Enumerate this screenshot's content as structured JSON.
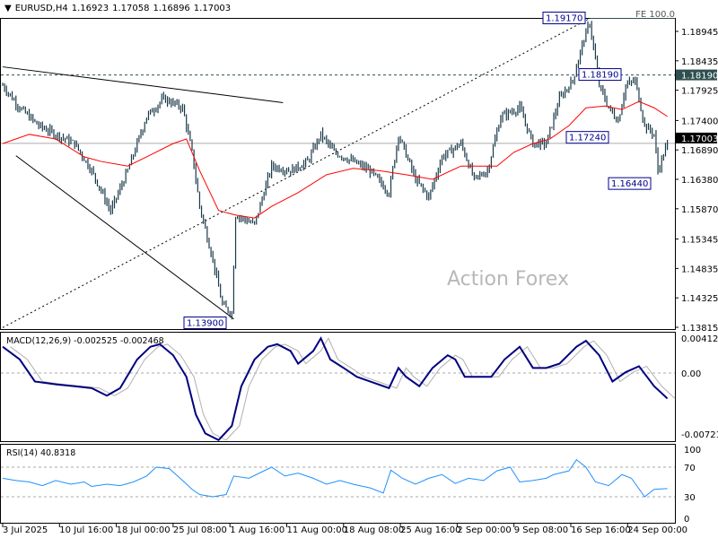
{
  "header": {
    "symbol": "EURUSD,H4",
    "open": "1.16923",
    "high": "1.17058",
    "low": "1.16896",
    "close": "1.17003"
  },
  "watermark": "Action Forex",
  "fe_label": "FE 100.0",
  "colors": {
    "bars": "#1a3a4a",
    "ma": "#ff0000",
    "macd": "#000080",
    "signal": "#b0b0b0",
    "rsi": "#1e90ff",
    "label_border": "#00008b"
  },
  "chart_data": [
    {
      "type": "ohlc",
      "title": "EURUSD,H4",
      "x_unit": "bar index (H4)",
      "x_ticks": [
        {
          "bar": 0,
          "label": "3 Jul 2025"
        },
        {
          "bar": 30,
          "label": "10 Jul 16:00"
        },
        {
          "bar": 60,
          "label": "18 Jul 00:00"
        },
        {
          "bar": 90,
          "label": "25 Jul 08:00"
        },
        {
          "bar": 120,
          "label": "1 Aug 16:00"
        },
        {
          "bar": 150,
          "label": "11 Aug 00:00"
        },
        {
          "bar": 180,
          "label": "18 Aug 08:00"
        },
        {
          "bar": 210,
          "label": "25 Aug 16:00"
        },
        {
          "bar": 240,
          "label": "2 Sep 00:00"
        },
        {
          "bar": 270,
          "label": "9 Sep 08:00"
        },
        {
          "bar": 300,
          "label": "16 Sep 16:00"
        },
        {
          "bar": 330,
          "label": "24 Sep 00:00"
        }
      ],
      "y_ticks": [
        "1.18945",
        "1.18435",
        "1.17925",
        "1.17400",
        "1.16890",
        "1.16380",
        "1.15870",
        "1.15345",
        "1.14835",
        "1.14325",
        "1.13815"
      ],
      "ylim": [
        1.13815,
        1.18945
      ],
      "close_path": [
        [
          0,
          1.1801
        ],
        [
          9,
          1.1762
        ],
        [
          19,
          1.1731
        ],
        [
          28,
          1.1716
        ],
        [
          38,
          1.17
        ],
        [
          47,
          1.1653
        ],
        [
          57,
          1.1583
        ],
        [
          66,
          1.1653
        ],
        [
          76,
          1.1747
        ],
        [
          85,
          1.1778
        ],
        [
          95,
          1.1762
        ],
        [
          100,
          1.1685
        ],
        [
          104,
          1.1591
        ],
        [
          111,
          1.1498
        ],
        [
          116,
          1.142
        ],
        [
          121,
          1.1405
        ],
        [
          123,
          1.1576
        ],
        [
          133,
          1.156
        ],
        [
          142,
          1.1661
        ],
        [
          152,
          1.1653
        ],
        [
          161,
          1.1669
        ],
        [
          168,
          1.1716
        ],
        [
          175,
          1.1685
        ],
        [
          185,
          1.1669
        ],
        [
          194,
          1.1653
        ],
        [
          204,
          1.1615
        ],
        [
          209,
          1.1716
        ],
        [
          218,
          1.1638
        ],
        [
          225,
          1.1607
        ],
        [
          232,
          1.1677
        ],
        [
          242,
          1.17
        ],
        [
          249,
          1.1638
        ],
        [
          256,
          1.1653
        ],
        [
          263,
          1.1747
        ],
        [
          273,
          1.1762
        ],
        [
          280,
          1.17
        ],
        [
          287,
          1.17
        ],
        [
          294,
          1.1778
        ],
        [
          301,
          1.1809
        ],
        [
          306,
          1.1871
        ],
        [
          310,
          1.191
        ],
        [
          315,
          1.1801
        ],
        [
          320,
          1.1762
        ],
        [
          325,
          1.1739
        ],
        [
          329,
          1.1801
        ],
        [
          334,
          1.1809
        ],
        [
          339,
          1.1731
        ],
        [
          344,
          1.1716
        ],
        [
          346,
          1.1653
        ],
        [
          351,
          1.17
        ]
      ],
      "moving_average": [
        [
          0,
          1.17
        ],
        [
          14,
          1.1716
        ],
        [
          28,
          1.1708
        ],
        [
          43,
          1.1677
        ],
        [
          52,
          1.1669
        ],
        [
          66,
          1.1661
        ],
        [
          76,
          1.1677
        ],
        [
          90,
          1.17
        ],
        [
          97,
          1.1708
        ],
        [
          104,
          1.1653
        ],
        [
          114,
          1.1584
        ],
        [
          123,
          1.1576
        ],
        [
          133,
          1.1571
        ],
        [
          142,
          1.1591
        ],
        [
          156,
          1.1615
        ],
        [
          171,
          1.1646
        ],
        [
          185,
          1.1657
        ],
        [
          199,
          1.1653
        ],
        [
          213,
          1.1646
        ],
        [
          227,
          1.1638
        ],
        [
          242,
          1.1661
        ],
        [
          251,
          1.1661
        ],
        [
          261,
          1.1661
        ],
        [
          270,
          1.1685
        ],
        [
          280,
          1.17
        ],
        [
          289,
          1.1708
        ],
        [
          299,
          1.1731
        ],
        [
          308,
          1.1762
        ],
        [
          318,
          1.1765
        ],
        [
          327,
          1.1759
        ],
        [
          336,
          1.1773
        ],
        [
          344,
          1.1762
        ],
        [
          351,
          1.1747
        ]
      ],
      "current_price": "1.17003",
      "levels": [
        {
          "label": "1.19170",
          "price": 1.1917,
          "style": "solid",
          "bar": 310
        },
        {
          "label": "1.18190",
          "price": 1.1819,
          "style": "dashed",
          "bar": 320
        },
        {
          "label": "1.17240",
          "price": 1.1724,
          "style": "none",
          "bar": 325
        },
        {
          "label": "1.16440",
          "price": 1.1644,
          "style": "none",
          "bar": 346
        },
        {
          "label": "1.13900",
          "price": 1.139,
          "style": "none",
          "bar": 121
        }
      ],
      "trendlines": [
        {
          "from": [
            0,
            1.1833
          ],
          "to": [
            148,
            1.1771
          ],
          "style": "solid"
        },
        {
          "from": [
            7,
            1.1679
          ],
          "to": [
            122,
            1.1396
          ],
          "style": "solid"
        },
        {
          "from": [
            0,
            1.1381
          ],
          "to": [
            310,
            1.1917
          ],
          "style": "dotted"
        }
      ]
    },
    {
      "type": "line",
      "title": "MACD(12,26,9) -0.002525 -0.002468",
      "y_ticks": [
        "0.004128",
        "0.00",
        "-0.007216"
      ],
      "ylim": [
        -0.007216,
        0.004128
      ],
      "macd": [
        [
          0,
          0.0031
        ],
        [
          9,
          0.0016
        ],
        [
          17,
          -0.0009
        ],
        [
          28,
          -0.0012
        ],
        [
          38,
          -0.0014
        ],
        [
          47,
          -0.0016
        ],
        [
          55,
          -0.0024
        ],
        [
          62,
          -0.0016
        ],
        [
          71,
          0.0016
        ],
        [
          78,
          0.0031
        ],
        [
          83,
          0.0034
        ],
        [
          90,
          0.0021
        ],
        [
          97,
          -0.0004
        ],
        [
          102,
          -0.0044
        ],
        [
          107,
          -0.0064
        ],
        [
          114,
          -0.0071
        ],
        [
          121,
          -0.0056
        ],
        [
          126,
          -0.0014
        ],
        [
          133,
          0.0016
        ],
        [
          140,
          0.0031
        ],
        [
          145,
          0.0034
        ],
        [
          152,
          0.0026
        ],
        [
          156,
          0.0011
        ],
        [
          164,
          0.0026
        ],
        [
          168,
          0.0041
        ],
        [
          173,
          0.0016
        ],
        [
          180,
          0.0006
        ],
        [
          187,
          -0.0004
        ],
        [
          194,
          -0.0009
        ],
        [
          204,
          -0.0016
        ],
        [
          209,
          0.0006
        ],
        [
          213,
          -0.0004
        ],
        [
          220,
          -0.0014
        ],
        [
          227,
          0.0006
        ],
        [
          235,
          0.0021
        ],
        [
          239,
          0.0016
        ],
        [
          244,
          -0.0004
        ],
        [
          251,
          -0.0004
        ],
        [
          258,
          -0.0004
        ],
        [
          265,
          0.0016
        ],
        [
          273,
          0.0031
        ],
        [
          280,
          0.0006
        ],
        [
          287,
          0.0006
        ],
        [
          294,
          0.0011
        ],
        [
          303,
          0.0031
        ],
        [
          308,
          0.0038
        ],
        [
          315,
          0.0021
        ],
        [
          322,
          -0.0009
        ],
        [
          329,
          0.0001
        ],
        [
          336,
          0.0008
        ],
        [
          344,
          -0.0014
        ],
        [
          351,
          -0.0027
        ]
      ],
      "signal_values": "-0.002468",
      "macd_value": "-0.002525"
    },
    {
      "type": "line",
      "title": "RSI(14) 40.8318",
      "y_ticks": [
        "100",
        "70",
        "30",
        "0"
      ],
      "ylim": [
        0,
        100
      ],
      "levels": [
        70,
        30
      ],
      "rsi": [
        [
          0,
          55
        ],
        [
          7,
          52
        ],
        [
          14,
          50
        ],
        [
          21,
          45
        ],
        [
          28,
          52
        ],
        [
          36,
          47
        ],
        [
          43,
          50
        ],
        [
          47,
          44
        ],
        [
          55,
          47
        ],
        [
          62,
          45
        ],
        [
          69,
          50
        ],
        [
          76,
          58
        ],
        [
          81,
          70
        ],
        [
          88,
          68
        ],
        [
          95,
          52
        ],
        [
          100,
          40
        ],
        [
          104,
          33
        ],
        [
          111,
          30
        ],
        [
          118,
          33
        ],
        [
          122,
          58
        ],
        [
          130,
          55
        ],
        [
          142,
          70
        ],
        [
          149,
          58
        ],
        [
          156,
          62
        ],
        [
          164,
          55
        ],
        [
          171,
          47
        ],
        [
          178,
          52
        ],
        [
          185,
          47
        ],
        [
          194,
          42
        ],
        [
          201,
          35
        ],
        [
          205,
          66
        ],
        [
          211,
          55
        ],
        [
          218,
          47
        ],
        [
          225,
          55
        ],
        [
          232,
          60
        ],
        [
          239,
          48
        ],
        [
          246,
          55
        ],
        [
          254,
          52
        ],
        [
          261,
          65
        ],
        [
          268,
          70
        ],
        [
          273,
          50
        ],
        [
          280,
          52
        ],
        [
          287,
          55
        ],
        [
          291,
          60
        ],
        [
          299,
          65
        ],
        [
          303,
          80
        ],
        [
          308,
          70
        ],
        [
          313,
          50
        ],
        [
          320,
          45
        ],
        [
          327,
          60
        ],
        [
          332,
          55
        ],
        [
          339,
          30
        ],
        [
          344,
          40
        ],
        [
          351,
          41
        ]
      ]
    }
  ]
}
